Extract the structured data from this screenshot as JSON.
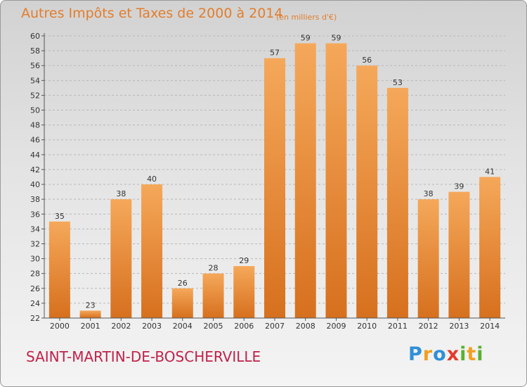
{
  "title": "Autres Impôts et Taxes de 2000 à 2014",
  "subtitle": "(en milliers d'€)",
  "commune": "SAINT-MARTIN-DE-BOSCHERVILLE",
  "logo": {
    "text": "Proxiti",
    "letters": [
      {
        "ch": "P",
        "color": "#2f8fd8"
      },
      {
        "ch": "r",
        "color": "#f0a020"
      },
      {
        "ch": "o",
        "color": "#2f8fd8"
      },
      {
        "ch": "x",
        "color": "#e53a2a"
      },
      {
        "ch": "i",
        "color": "#5ab030"
      },
      {
        "ch": "t",
        "color": "#f0a020"
      },
      {
        "ch": "i",
        "color": "#5ab030"
      }
    ]
  },
  "colors": {
    "bar_top": "#f5a85a",
    "bar_bottom": "#d6701e",
    "title": "#e37d2c",
    "commune": "#c1214a",
    "grid": "#b8b8b8"
  },
  "chart_data": {
    "type": "bar",
    "categories": [
      "2000",
      "2001",
      "2002",
      "2003",
      "2004",
      "2005",
      "2006",
      "2007",
      "2008",
      "2009",
      "2010",
      "2011",
      "2012",
      "2013",
      "2014"
    ],
    "values": [
      35,
      23,
      38,
      40,
      26,
      28,
      29,
      57,
      59,
      59,
      56,
      53,
      38,
      39,
      41
    ],
    "title": "Autres Impôts et Taxes de 2000 à 2014",
    "subtitle": "(en milliers d'€)",
    "xlabel": "",
    "ylabel": "",
    "ylim": [
      22,
      60
    ],
    "ytick_step": 2,
    "grid": true,
    "data_labels": true
  }
}
